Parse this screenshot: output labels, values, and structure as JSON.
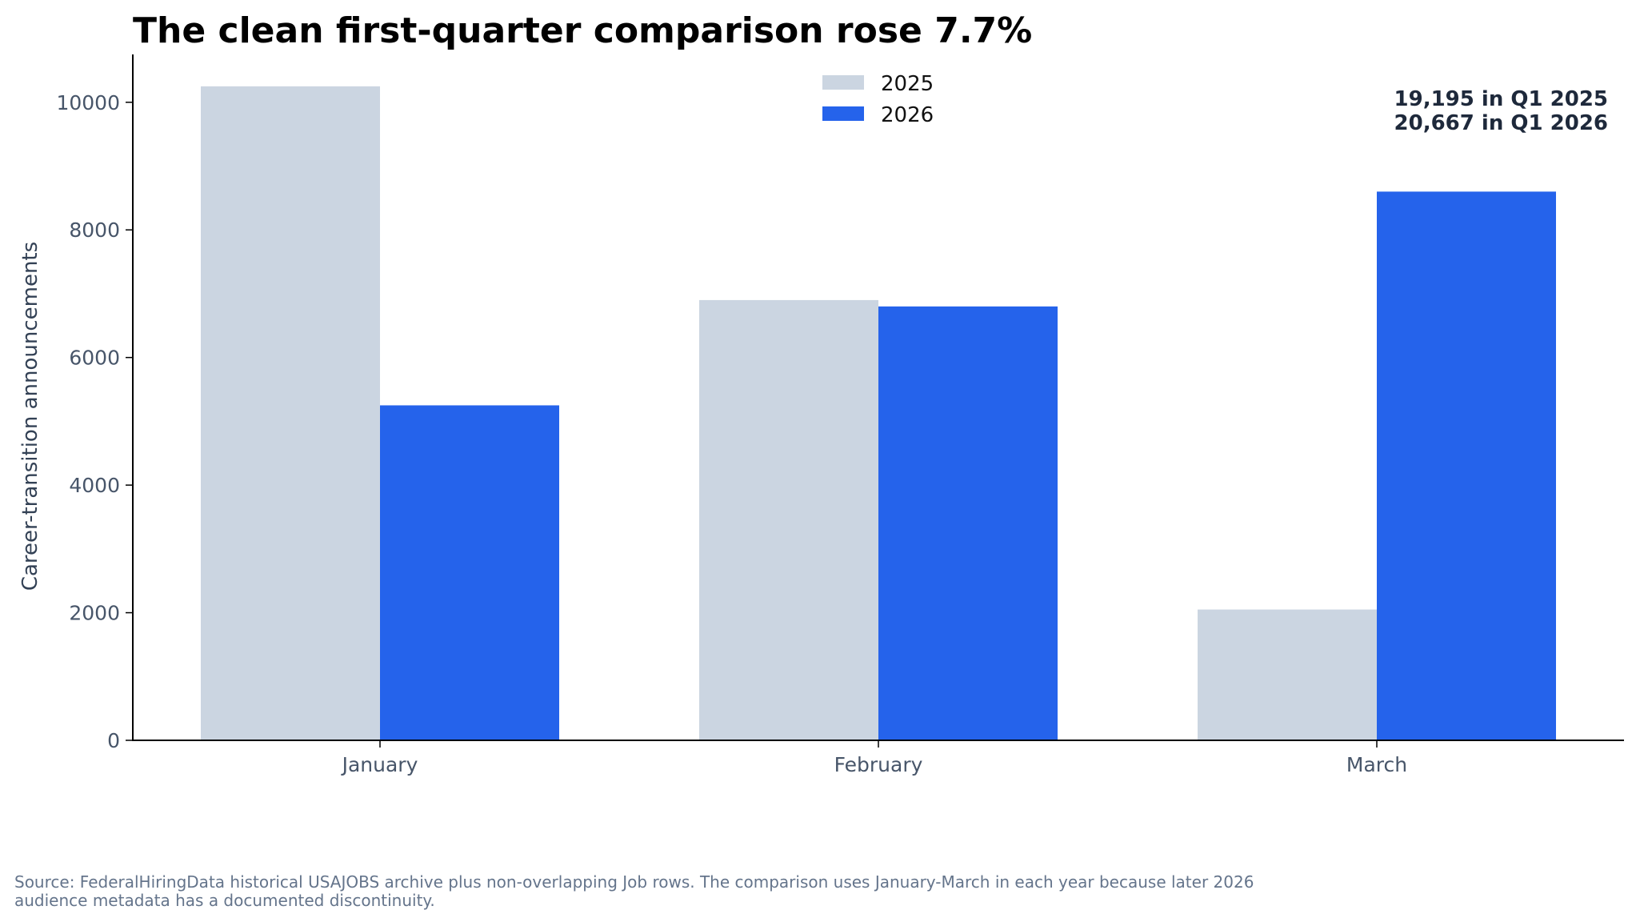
{
  "chart_data": {
    "type": "bar",
    "title": "The clean first-quarter comparison rose 7.7%",
    "xlabel": "",
    "ylabel": "Career-transition announcements",
    "categories": [
      "January",
      "February",
      "March"
    ],
    "series": [
      {
        "name": "2025",
        "values": [
          10250,
          6900,
          2050
        ],
        "color": "#cbd5e1"
      },
      {
        "name": "2026",
        "values": [
          5250,
          6800,
          8600
        ],
        "color": "#2563eb"
      }
    ],
    "ylim": [
      0,
      10750
    ],
    "yticks": [
      0,
      2000,
      4000,
      6000,
      8000,
      10000
    ],
    "ytick_labels": [
      "0",
      "2000",
      "4000",
      "6000",
      "8000",
      "10000"
    ],
    "grid": false,
    "legend_position": "top-center",
    "annotations": [
      "19,195 in Q1 2025",
      "20,667 in Q1 2026"
    ]
  },
  "source_lines": [
    "Source: FederalHiringData historical USAJOBS archive plus non-overlapping Job rows. The comparison uses January-March in each year because later 2026",
    "audience metadata has a documented discontinuity."
  ]
}
